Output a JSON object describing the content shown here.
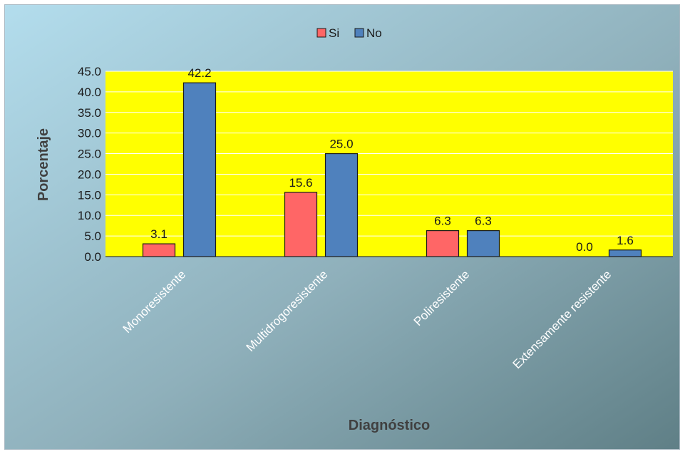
{
  "chart_data": {
    "type": "bar",
    "title": "",
    "xlabel": "Diagnóstico",
    "ylabel": "Porcentaje",
    "categories": [
      "Monoresistente",
      "Multidrogoresistente",
      "Poliresistente",
      "Extensamente resistente"
    ],
    "series": [
      {
        "name": "Si",
        "values": [
          3.1,
          15.6,
          6.3,
          0.0
        ],
        "color": "#ff6666"
      },
      {
        "name": "No",
        "values": [
          42.2,
          25.0,
          6.3,
          1.6
        ],
        "color": "#4f81bd"
      }
    ],
    "ylim": [
      0,
      45
    ],
    "yticks": [
      "0.0",
      "5.0",
      "10.0",
      "15.0",
      "20.0",
      "25.0",
      "30.0",
      "35.0",
      "40.0",
      "45.0"
    ],
    "data_labels": [
      [
        "3.1",
        "15.6",
        "6.3",
        "0.0"
      ],
      [
        "42.2",
        "25.0",
        "6.3",
        "1.6"
      ]
    ],
    "grid": true,
    "legend_position": "top-center",
    "plot_background": "#ffff00",
    "chart_background": [
      "#b3dded",
      "#8fb0bb",
      "#5f7f86"
    ],
    "gridline_color": "#ffffff"
  }
}
